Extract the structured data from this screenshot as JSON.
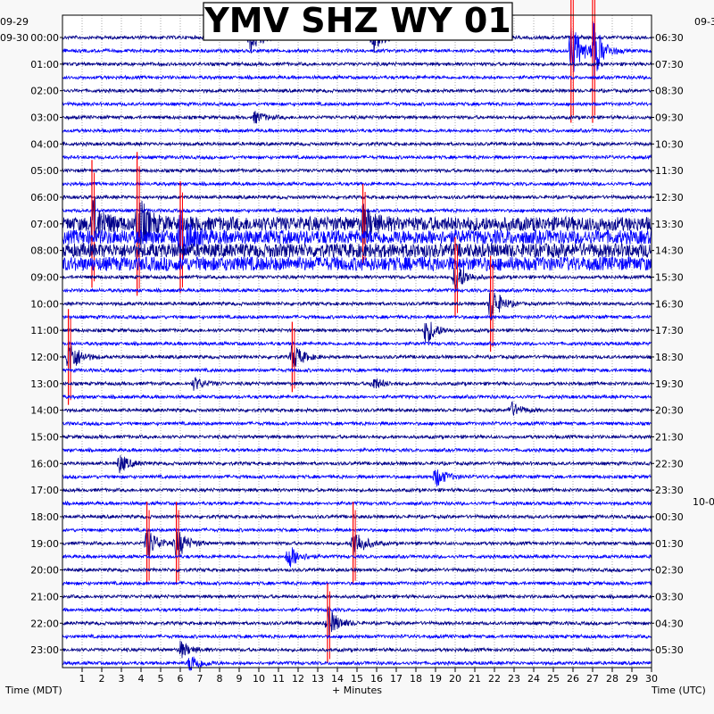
{
  "chart_data": {
    "type": "line",
    "title": "YMV SHZ WY 01",
    "xlabel": "+ Minutes",
    "left_axis_label": "Time (MDT)",
    "right_axis_label": "Time (UTC)",
    "x_ticks": [
      "1",
      "2",
      "3",
      "4",
      "5",
      "6",
      "7",
      "8",
      "9",
      "10",
      "11",
      "12",
      "13",
      "14",
      "15",
      "16",
      "17",
      "18",
      "19",
      "20",
      "21",
      "22",
      "23",
      "24",
      "25",
      "26",
      "27",
      "28",
      "29",
      "30"
    ],
    "xlim": [
      0,
      30
    ],
    "left_date_labels": [
      "09-29",
      "09-30"
    ],
    "right_date_labels": [
      "09-3",
      "10-0"
    ],
    "left_hour_labels": [
      "00:00",
      "01:00",
      "02:00",
      "03:00",
      "04:00",
      "05:00",
      "06:00",
      "07:00",
      "08:00",
      "09:00",
      "10:00",
      "11:00",
      "12:00",
      "13:00",
      "14:00",
      "15:00",
      "16:00",
      "17:00",
      "18:00",
      "19:00",
      "20:00",
      "21:00",
      "22:00",
      "23:00"
    ],
    "right_hour_labels": [
      "06:30",
      "07:30",
      "08:30",
      "09:30",
      "10:30",
      "11:30",
      "12:30",
      "13:30",
      "14:30",
      "15:30",
      "16:30",
      "17:30",
      "18:30",
      "19:30",
      "20:30",
      "21:30",
      "22:30",
      "23:30",
      "00:30",
      "01:30",
      "02:30",
      "03:30",
      "04:30",
      "05:30"
    ],
    "traces_per_hour": 2,
    "trace_colors": [
      "#00008b",
      "#0000ff"
    ],
    "clip_color": "#ff0000",
    "grid": "dotted",
    "events": [
      {
        "hour": 0,
        "half": 0,
        "minute": 9.5,
        "amp": 3.0
      },
      {
        "hour": 0,
        "half": 0,
        "minute": 15.8,
        "amp": 3.0
      },
      {
        "hour": 0,
        "half": 1,
        "minute": 25.9,
        "amp": 4.5,
        "clip": true
      },
      {
        "hour": 0,
        "half": 1,
        "minute": 27.0,
        "amp": 4.5,
        "clip": true
      },
      {
        "hour": 3,
        "half": 0,
        "minute": 9.8,
        "amp": 0.9
      },
      {
        "hour": 7,
        "half": 0,
        "minute": 1.5,
        "amp": 4.0,
        "clip": true
      },
      {
        "hour": 7,
        "half": 0,
        "minute": 3.8,
        "amp": 4.5,
        "clip": true
      },
      {
        "hour": 7,
        "half": 1,
        "minute": 6.0,
        "amp": 3.5,
        "clip": true
      },
      {
        "hour": 7,
        "half": 0,
        "minute": 15.3,
        "amp": 2.5,
        "clip": true
      },
      {
        "hour": 9,
        "half": 0,
        "minute": 20.0,
        "amp": 2.5,
        "clip": true
      },
      {
        "hour": 10,
        "half": 0,
        "minute": 21.8,
        "amp": 3.0,
        "clip": true
      },
      {
        "hour": 11,
        "half": 0,
        "minute": 18.5,
        "amp": 2.2
      },
      {
        "hour": 12,
        "half": 0,
        "minute": 0.3,
        "amp": 3.0,
        "clip": true
      },
      {
        "hour": 12,
        "half": 0,
        "minute": 11.7,
        "amp": 2.2,
        "clip": true
      },
      {
        "hour": 13,
        "half": 0,
        "minute": 6.7,
        "amp": 1.0
      },
      {
        "hour": 13,
        "half": 0,
        "minute": 15.8,
        "amp": 1.0
      },
      {
        "hour": 14,
        "half": 0,
        "minute": 22.8,
        "amp": 1.3
      },
      {
        "hour": 16,
        "half": 0,
        "minute": 2.9,
        "amp": 1.4
      },
      {
        "hour": 16,
        "half": 1,
        "minute": 19.0,
        "amp": 1.6
      },
      {
        "hour": 19,
        "half": 0,
        "minute": 4.3,
        "amp": 2.6,
        "clip": true
      },
      {
        "hour": 19,
        "half": 0,
        "minute": 5.8,
        "amp": 2.6,
        "clip": true
      },
      {
        "hour": 19,
        "half": 1,
        "minute": 11.5,
        "amp": 2.0
      },
      {
        "hour": 19,
        "half": 0,
        "minute": 14.8,
        "amp": 2.6,
        "clip": true
      },
      {
        "hour": 22,
        "half": 0,
        "minute": 13.5,
        "amp": 2.5,
        "clip": true
      },
      {
        "hour": 23,
        "half": 0,
        "minute": 6.0,
        "amp": 1.3
      },
      {
        "hour": 23,
        "half": 1,
        "minute": 6.5,
        "amp": 1.5
      }
    ]
  }
}
